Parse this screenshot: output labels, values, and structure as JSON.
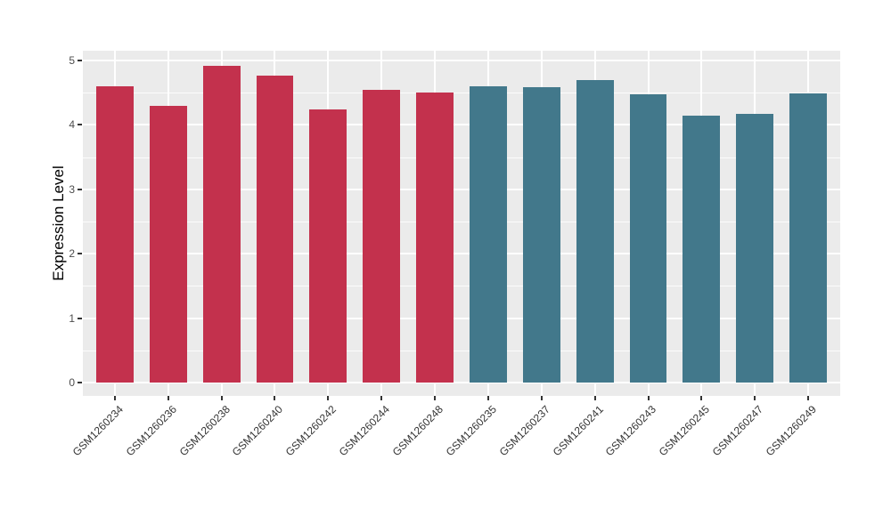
{
  "chart_data": {
    "type": "bar",
    "title": "",
    "xlabel": "",
    "ylabel": "Expression Level",
    "ylim": [
      0,
      5
    ],
    "yticks": [
      "0",
      "1",
      "2",
      "3",
      "4",
      "5"
    ],
    "grid": "on",
    "legend_position": "none",
    "categories": [
      "GSM1260234",
      "GSM1260236",
      "GSM1260238",
      "GSM1260240",
      "GSM1260242",
      "GSM1260244",
      "GSM1260248",
      "GSM1260235",
      "GSM1260237",
      "GSM1260241",
      "GSM1260243",
      "GSM1260245",
      "GSM1260247",
      "GSM1260249"
    ],
    "values": [
      4.6,
      4.3,
      4.92,
      4.76,
      4.24,
      4.54,
      4.5,
      4.6,
      4.59,
      4.69,
      4.47,
      4.14,
      4.17,
      4.49
    ],
    "bar_colors": [
      "#C3314D",
      "#C3314D",
      "#C3314D",
      "#C3314D",
      "#C3314D",
      "#C3314D",
      "#C3314D",
      "#42788B",
      "#42788B",
      "#42788B",
      "#42788B",
      "#42788B",
      "#42788B",
      "#42788B"
    ],
    "color_groups": [
      {
        "color": "#C3314D",
        "samples": [
          "GSM1260234",
          "GSM1260236",
          "GSM1260238",
          "GSM1260240",
          "GSM1260242",
          "GSM1260244",
          "GSM1260248"
        ]
      },
      {
        "color": "#42788B",
        "samples": [
          "GSM1260235",
          "GSM1260237",
          "GSM1260241",
          "GSM1260243",
          "GSM1260245",
          "GSM1260247",
          "GSM1260249"
        ]
      }
    ],
    "panel_bg": "#EBEBEB",
    "grid_color": "#FFFFFF",
    "tick_color": "#333333",
    "axis_text_color": "#4D4D4D"
  }
}
